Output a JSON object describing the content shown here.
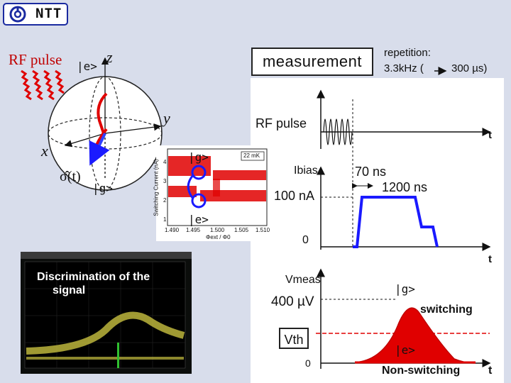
{
  "logo": {
    "text": "NTT"
  },
  "header": {
    "measurement_label": "measurement",
    "repetition_line1": "repetition:",
    "repetition_line2": "3.3kHz (",
    "repetition_line3": "300 µs)"
  },
  "bloch": {
    "rf_pulse_label": "RF pulse",
    "ket_e": "|e>",
    "ket_g": "|g>",
    "axis_z": "z",
    "axis_y": "y",
    "axis_x": "x",
    "sigma_label": "σ̂(t)"
  },
  "switching_plot": {
    "ket_g": "|g>",
    "ket_e": "|e>",
    "ylabel": "Switching Current (nA)",
    "xlabel": "Φext / Φ0",
    "ytick_labels": [
      "1",
      "2",
      "3",
      "4"
    ],
    "xtick_labels": [
      "1.490",
      "1.495",
      "1.500",
      "1.505",
      "1.510"
    ],
    "legend": "22 mK"
  },
  "timing": {
    "rf_pulse_label": "RF pulse",
    "t_label_top": "t",
    "ibias_label": "Ibias",
    "current_label": "100 nA",
    "zero_label": "0",
    "t_label_mid": "t",
    "rise_time": "70 ns",
    "plateau_time": "1200 ns"
  },
  "voltage": {
    "vmeas_label": "Vmeas",
    "vmeas_value": "400 µV",
    "vth_label": "Vth",
    "zero_label": "0",
    "ket_g": "|g>",
    "switching_label": "switching",
    "ket_e": "|e>",
    "nonswitching_label": "Non-switching",
    "t_label": "t"
  },
  "scope": {
    "label_line1": "Discrimination of the",
    "label_line2": "signal"
  },
  "colors": {
    "background": "#d8ddeb",
    "pulse_blue": "#1a1aff",
    "red": "#e00000",
    "dark_red": "#c00000"
  }
}
